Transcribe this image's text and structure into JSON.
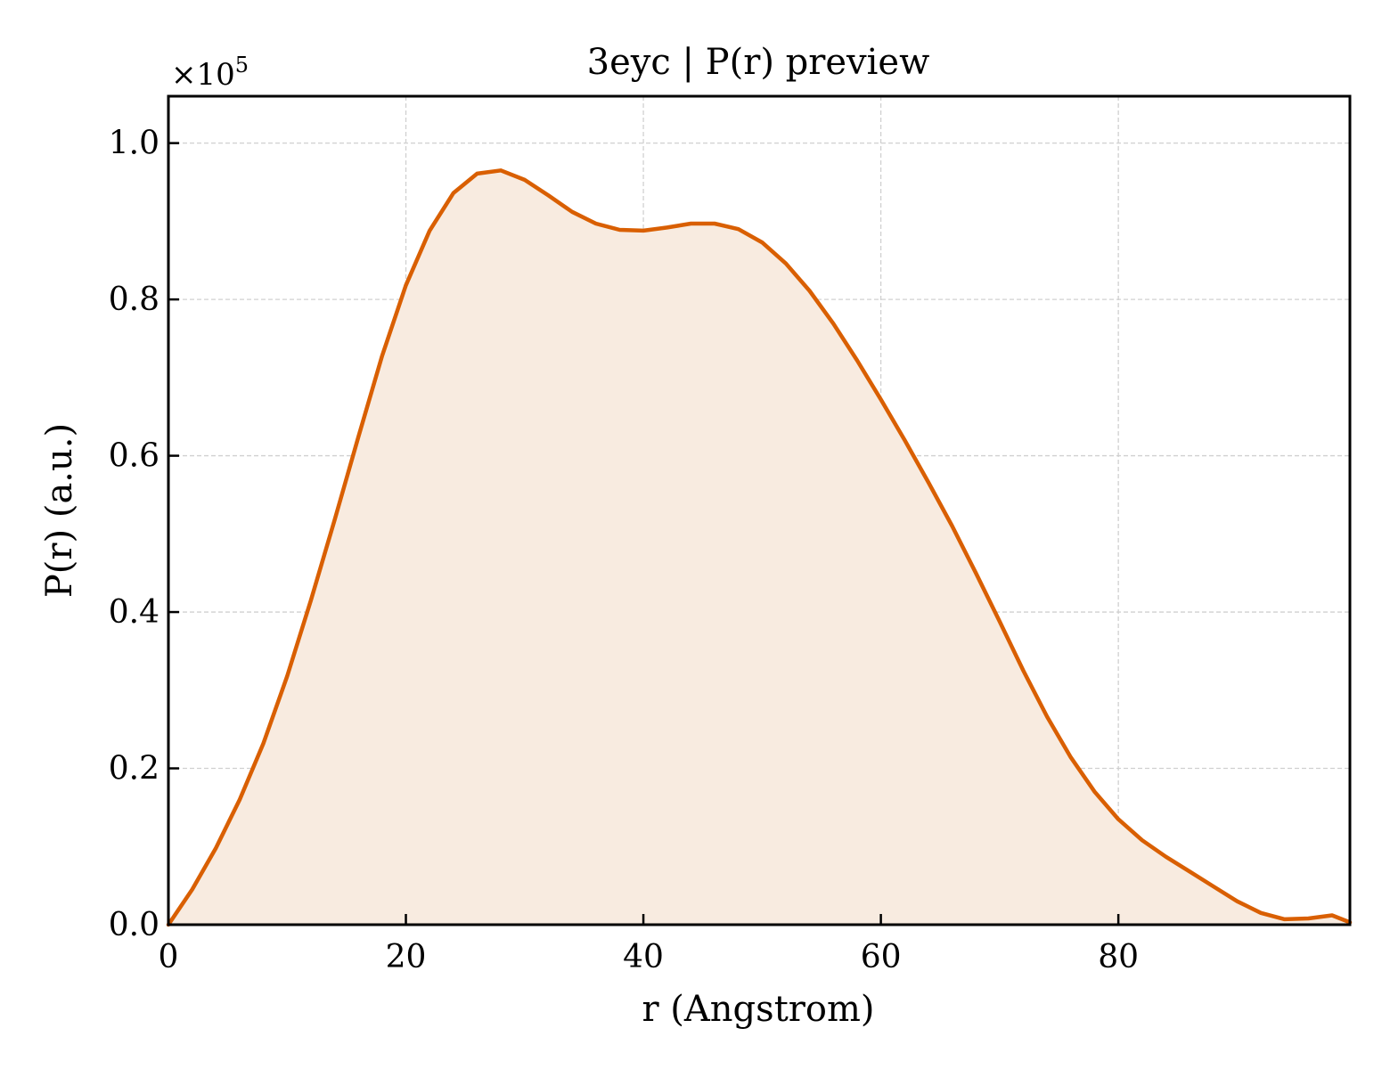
{
  "chart_data": {
    "type": "area",
    "title": "3eyc | P(r) preview",
    "xlabel": "r (Angstrom)",
    "ylabel": "P(r) (a.u.)",
    "y_multiplier_text": "×10",
    "y_multiplier_exponent": "5",
    "xlim": [
      0,
      99.5
    ],
    "ylim": [
      0,
      1.06
    ],
    "y_scale": 100000,
    "x_ticks": [
      0,
      20,
      40,
      60,
      80
    ],
    "x_tick_labels": [
      "0",
      "20",
      "40",
      "60",
      "80"
    ],
    "y_ticks": [
      0,
      0.2,
      0.4,
      0.6,
      0.8,
      1.0
    ],
    "y_tick_labels": [
      "0.0",
      "0.2",
      "0.4",
      "0.6",
      "0.8",
      "1.0"
    ],
    "grid": true,
    "line_color": "#d95f02",
    "fill_color": "#f8ebe0",
    "series": [
      {
        "x": [
          0,
          2,
          4,
          6,
          8,
          10,
          12,
          14,
          16,
          18,
          20,
          22,
          24,
          26,
          28,
          30,
          32,
          34,
          36,
          38,
          40,
          42,
          44,
          46,
          48,
          50,
          52,
          54,
          56,
          58,
          60,
          62,
          64,
          66,
          68,
          70,
          72,
          74,
          76,
          78,
          80,
          82,
          84,
          86,
          88,
          90,
          92,
          94,
          96,
          98,
          99.5
        ],
        "y": [
          0.0,
          0.045,
          0.098,
          0.16,
          0.232,
          0.318,
          0.415,
          0.518,
          0.624,
          0.728,
          0.818,
          0.888,
          0.936,
          0.961,
          0.965,
          0.953,
          0.933,
          0.912,
          0.897,
          0.889,
          0.888,
          0.892,
          0.897,
          0.897,
          0.89,
          0.873,
          0.846,
          0.811,
          0.769,
          0.722,
          0.672,
          0.62,
          0.566,
          0.51,
          0.45,
          0.388,
          0.325,
          0.266,
          0.214,
          0.17,
          0.135,
          0.108,
          0.087,
          0.068,
          0.049,
          0.03,
          0.015,
          0.007,
          0.008,
          0.012,
          0.003
        ]
      }
    ]
  }
}
